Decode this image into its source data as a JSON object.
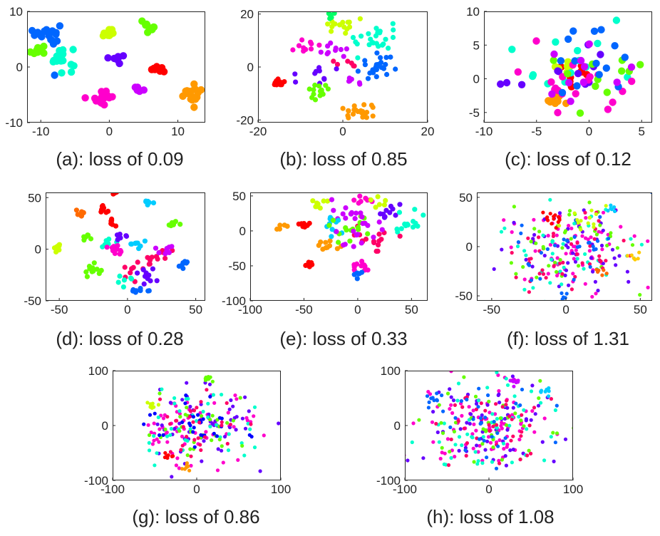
{
  "figure": {
    "palette": [
      "#ff0000",
      "#ff6a00",
      "#ff9900",
      "#ffcc00",
      "#ccff00",
      "#66ff00",
      "#00ff66",
      "#00ffcc",
      "#00ccff",
      "#0066ff",
      "#0000ff",
      "#6600ff",
      "#cc00ff",
      "#ff00cc",
      "#ff0066"
    ]
  },
  "chart_data": [
    {
      "id": "a",
      "type": "scatter",
      "caption": "(a): loss of 0.09",
      "xlim": [
        -12,
        14
      ],
      "ylim": [
        -10,
        10
      ],
      "xticks": [
        -10,
        0,
        10
      ],
      "yticks": [
        -10,
        0,
        10
      ],
      "clusters": [
        {
          "x": -9,
          "y": 6,
          "color": "#0066ff",
          "n": 18,
          "spread": 0.9
        },
        {
          "x": -10.5,
          "y": 3,
          "color": "#66ff00",
          "n": 8,
          "spread": 0.6
        },
        {
          "x": -7,
          "y": 1.8,
          "color": "#00ffcc",
          "n": 20,
          "spread": 1.0
        },
        {
          "x": -8,
          "y": -1.5,
          "color": "#0066ff",
          "n": 1,
          "spread": 0.1
        },
        {
          "x": 0,
          "y": 6,
          "color": "#ccff00",
          "n": 10,
          "spread": 0.5
        },
        {
          "x": 5.5,
          "y": 7.5,
          "color": "#66ff00",
          "n": 10,
          "spread": 0.6
        },
        {
          "x": 1.2,
          "y": 1.5,
          "color": "#6600ff",
          "n": 8,
          "spread": 0.4
        },
        {
          "x": 7,
          "y": -0.2,
          "color": "#ff0000",
          "n": 8,
          "spread": 0.4
        },
        {
          "x": 4,
          "y": -3.8,
          "color": "#cc00ff",
          "n": 6,
          "spread": 0.4
        },
        {
          "x": -1,
          "y": -5.5,
          "color": "#ff00cc",
          "n": 16,
          "spread": 0.7
        },
        {
          "x": -3.5,
          "y": -5.5,
          "color": "#ff00cc",
          "n": 1,
          "spread": 0.1
        },
        {
          "x": 12,
          "y": -4.8,
          "color": "#ff9900",
          "n": 18,
          "spread": 0.8
        }
      ]
    },
    {
      "id": "b",
      "type": "scatter",
      "caption": "(b): loss of 0.85",
      "xlim": [
        -20,
        20
      ],
      "ylim": [
        -21,
        21
      ],
      "xticks": [
        -20,
        0,
        20
      ],
      "yticks": [
        -20,
        0,
        20
      ],
      "clusters": [
        {
          "x": -1,
          "y": 16,
          "color": "#ccff00",
          "n": 14,
          "spread": 2.0
        },
        {
          "x": -2.5,
          "y": 19,
          "color": "#00ff66",
          "n": 5,
          "spread": 0.8
        },
        {
          "x": 8,
          "y": 11,
          "color": "#00ffcc",
          "n": 24,
          "spread": 2.5
        },
        {
          "x": -8,
          "y": 8,
          "color": "#ff00cc",
          "n": 10,
          "spread": 1.5
        },
        {
          "x": -3,
          "y": 6,
          "color": "#cc00ff",
          "n": 10,
          "spread": 2.0
        },
        {
          "x": 1,
          "y": 2,
          "color": "#ff0066",
          "n": 6,
          "spread": 1.5
        },
        {
          "x": 8,
          "y": 0,
          "color": "#0066ff",
          "n": 24,
          "spread": 2.5
        },
        {
          "x": -6,
          "y": -2,
          "color": "#6600ff",
          "n": 10,
          "spread": 1.6
        },
        {
          "x": -15,
          "y": -6,
          "color": "#ff0000",
          "n": 14,
          "spread": 1.0
        },
        {
          "x": -6,
          "y": -9,
          "color": "#66ff00",
          "n": 14,
          "spread": 1.6
        },
        {
          "x": 3,
          "y": -6,
          "color": "#cc00ff",
          "n": 6,
          "spread": 1.2
        },
        {
          "x": 4,
          "y": -17,
          "color": "#ff9900",
          "n": 22,
          "spread": 1.8
        }
      ]
    },
    {
      "id": "c",
      "type": "scatter",
      "caption": "(c): loss of 0.12",
      "xlim": [
        -10,
        6
      ],
      "ylim": [
        -6.5,
        10
      ],
      "xticks": [
        -10,
        -5,
        0,
        5
      ],
      "yticks": [
        -5,
        0,
        5,
        10
      ],
      "clusters": [
        {
          "x": -3,
          "y": -3,
          "color": "#ff9900",
          "n": 14,
          "spread": 0.7
        },
        {
          "x": -1,
          "y": 1,
          "color": "#ff0000",
          "n": 8,
          "spread": 1.2
        },
        {
          "x": -2,
          "y": 2,
          "color": "#ccff00",
          "n": 6,
          "spread": 0.8
        },
        {
          "x": 0,
          "y": 2,
          "color": "#6600ff",
          "n": 8,
          "spread": 1.5
        },
        {
          "x": -3,
          "y": 1,
          "color": "#00ffcc",
          "n": 14,
          "spread": 3.0
        },
        {
          "x": -1,
          "y": 0,
          "color": "#ff00cc",
          "n": 20,
          "spread": 3.2
        },
        {
          "x": 0,
          "y": 0,
          "color": "#66ff00",
          "n": 12,
          "spread": 3.0
        },
        {
          "x": 0,
          "y": 1,
          "color": "#0066ff",
          "n": 14,
          "spread": 3.5
        },
        {
          "x": 0,
          "y": 0,
          "color": "#cc00ff",
          "n": 10,
          "spread": 3.0
        },
        {
          "x": -7.5,
          "y": -0.5,
          "color": "#6600ff",
          "n": 3,
          "spread": 0.5
        }
      ]
    },
    {
      "id": "d",
      "type": "scatter",
      "caption": "(d): loss of 0.28",
      "xlim": [
        -60,
        57
      ],
      "ylim": [
        -50,
        55
      ],
      "xticks": [
        -50,
        0,
        50
      ],
      "yticks": [
        -50,
        0,
        50
      ],
      "clusters": [
        {
          "x": -52,
          "y": 1,
          "color": "#ccff00",
          "n": 10,
          "spread": 2
        },
        {
          "x": -34,
          "y": 35,
          "color": "#ff6a00",
          "n": 8,
          "spread": 2
        },
        {
          "x": -18,
          "y": 39,
          "color": "#ff0000",
          "n": 8,
          "spread": 2
        },
        {
          "x": -10,
          "y": 54,
          "color": "#ff0000",
          "n": 4,
          "spread": 1
        },
        {
          "x": 14,
          "y": 45,
          "color": "#00ccff",
          "n": 6,
          "spread": 2
        },
        {
          "x": 33,
          "y": 24,
          "color": "#66ff00",
          "n": 8,
          "spread": 2
        },
        {
          "x": -11,
          "y": 25,
          "color": "#ff0000",
          "n": 6,
          "spread": 2
        },
        {
          "x": -30,
          "y": 10,
          "color": "#66ff00",
          "n": 6,
          "spread": 3
        },
        {
          "x": -15,
          "y": 5,
          "color": "#00ffcc",
          "n": 6,
          "spread": 3
        },
        {
          "x": -5,
          "y": 10,
          "color": "#6600ff",
          "n": 6,
          "spread": 3
        },
        {
          "x": -8,
          "y": -1,
          "color": "#ff00cc",
          "n": 10,
          "spread": 3
        },
        {
          "x": 8,
          "y": 5,
          "color": "#00ccff",
          "n": 8,
          "spread": 3
        },
        {
          "x": 20,
          "y": -5,
          "color": "#ff0066",
          "n": 14,
          "spread": 5
        },
        {
          "x": 28,
          "y": 0,
          "color": "#cc00ff",
          "n": 8,
          "spread": 4
        },
        {
          "x": -25,
          "y": -20,
          "color": "#66ff00",
          "n": 12,
          "spread": 4
        },
        {
          "x": 5,
          "y": -18,
          "color": "#ff0066",
          "n": 8,
          "spread": 4
        },
        {
          "x": 15,
          "y": -28,
          "color": "#6600ff",
          "n": 10,
          "spread": 4
        },
        {
          "x": 10,
          "y": -40,
          "color": "#0066ff",
          "n": 8,
          "spread": 3
        },
        {
          "x": 42,
          "y": -15,
          "color": "#0066ff",
          "n": 8,
          "spread": 3
        },
        {
          "x": -5,
          "y": -30,
          "color": "#00ffcc",
          "n": 6,
          "spread": 3
        }
      ]
    },
    {
      "id": "e",
      "type": "scatter",
      "caption": "(e): loss of 0.33",
      "xlim": [
        -100,
        65
      ],
      "ylim": [
        -100,
        55
      ],
      "xticks": [
        -100,
        -50,
        0,
        50
      ],
      "yticks": [
        -100,
        -50,
        0,
        50
      ],
      "clusters": [
        {
          "x": -70,
          "y": 5,
          "color": "#ff9900",
          "n": 5,
          "spread": 3
        },
        {
          "x": -35,
          "y": 40,
          "color": "#ccff00",
          "n": 8,
          "spread": 4
        },
        {
          "x": -48,
          "y": 10,
          "color": "#ff0000",
          "n": 8,
          "spread": 3
        },
        {
          "x": -10,
          "y": 25,
          "color": "#cc00ff",
          "n": 12,
          "spread": 8
        },
        {
          "x": 5,
          "y": 45,
          "color": "#ff00cc",
          "n": 8,
          "spread": 4
        },
        {
          "x": 30,
          "y": 25,
          "color": "#6600ff",
          "n": 10,
          "spread": 8
        },
        {
          "x": 45,
          "y": 10,
          "color": "#00ffcc",
          "n": 14,
          "spread": 8
        },
        {
          "x": 15,
          "y": -10,
          "color": "#ff0066",
          "n": 16,
          "spread": 10
        },
        {
          "x": -30,
          "y": -20,
          "color": "#ff9900",
          "n": 10,
          "spread": 5
        },
        {
          "x": -45,
          "y": -48,
          "color": "#ff0000",
          "n": 6,
          "spread": 2
        },
        {
          "x": 0,
          "y": -50,
          "color": "#ff00cc",
          "n": 10,
          "spread": 5
        },
        {
          "x": -2,
          "y": -62,
          "color": "#0066ff",
          "n": 6,
          "spread": 3
        },
        {
          "x": -20,
          "y": 10,
          "color": "#00ccff",
          "n": 10,
          "spread": 10
        },
        {
          "x": 0,
          "y": 0,
          "color": "#66ff00",
          "n": 16,
          "spread": 18
        },
        {
          "x": 0,
          "y": 0,
          "color": "#cc00ff",
          "n": 16,
          "spread": 18
        },
        {
          "x": 20,
          "y": 40,
          "color": "#ccff00",
          "n": 6,
          "spread": 5
        }
      ]
    },
    {
      "id": "f",
      "type": "scatter",
      "caption": "(f): loss of 1.31",
      "xlim": [
        -60,
        58
      ],
      "ylim": [
        -55,
        55
      ],
      "xticks": [
        -50,
        0,
        50
      ],
      "yticks": [
        -50,
        0,
        50
      ],
      "clusters": [
        {
          "x": 0,
          "y": 0,
          "color": "#ff00cc",
          "n": 70,
          "spread": 22
        },
        {
          "x": 0,
          "y": 0,
          "color": "#6600ff",
          "n": 50,
          "spread": 22
        },
        {
          "x": 0,
          "y": 0,
          "color": "#66ff00",
          "n": 40,
          "spread": 22
        },
        {
          "x": 0,
          "y": 0,
          "color": "#00ffcc",
          "n": 40,
          "spread": 22
        },
        {
          "x": 0,
          "y": 0,
          "color": "#ff0066",
          "n": 40,
          "spread": 22
        },
        {
          "x": 0,
          "y": 0,
          "color": "#0066ff",
          "n": 30,
          "spread": 22
        },
        {
          "x": -10,
          "y": 30,
          "color": "#ff0000",
          "n": 14,
          "spread": 4
        },
        {
          "x": 10,
          "y": 25,
          "color": "#ccff00",
          "n": 14,
          "spread": 6
        },
        {
          "x": 25,
          "y": -25,
          "color": "#ff6a00",
          "n": 6,
          "spread": 2
        },
        {
          "x": 45,
          "y": -10,
          "color": "#ffcc00",
          "n": 6,
          "spread": 3
        },
        {
          "x": 0,
          "y": -50,
          "color": "#0066ff",
          "n": 5,
          "spread": 2
        },
        {
          "x": 30,
          "y": 40,
          "color": "#00ccff",
          "n": 6,
          "spread": 3
        }
      ]
    },
    {
      "id": "g",
      "type": "scatter",
      "caption": "(g): loss of 0.86",
      "xlim": [
        -100,
        100
      ],
      "ylim": [
        -100,
        100
      ],
      "xticks": [
        -100,
        0,
        100
      ],
      "yticks": [
        -100,
        0,
        100
      ],
      "clusters": [
        {
          "x": 0,
          "y": 0,
          "color": "#ff00cc",
          "n": 70,
          "spread": 35
        },
        {
          "x": 0,
          "y": 0,
          "color": "#6600ff",
          "n": 50,
          "spread": 30
        },
        {
          "x": 0,
          "y": 0,
          "color": "#00ffcc",
          "n": 40,
          "spread": 35
        },
        {
          "x": 0,
          "y": 0,
          "color": "#66ff00",
          "n": 30,
          "spread": 30
        },
        {
          "x": 0,
          "y": 0,
          "color": "#0000ff",
          "n": 30,
          "spread": 25
        },
        {
          "x": 0,
          "y": 0,
          "color": "#ff0066",
          "n": 30,
          "spread": 30
        },
        {
          "x": 15,
          "y": 85,
          "color": "#66ff00",
          "n": 8,
          "spread": 4
        },
        {
          "x": -10,
          "y": -75,
          "color": "#ff9900",
          "n": 8,
          "spread": 4
        },
        {
          "x": -35,
          "y": -55,
          "color": "#ff0000",
          "n": 8,
          "spread": 4
        },
        {
          "x": -55,
          "y": 35,
          "color": "#ccff00",
          "n": 8,
          "spread": 4
        }
      ]
    },
    {
      "id": "h",
      "type": "scatter",
      "caption": "(h): loss of 1.08",
      "xlim": [
        -100,
        100
      ],
      "ylim": [
        -100,
        100
      ],
      "xticks": [
        -100,
        0,
        100
      ],
      "yticks": [
        -100,
        0,
        100
      ],
      "clusters": [
        {
          "x": 0,
          "y": 0,
          "color": "#ff00cc",
          "n": 90,
          "spread": 40
        },
        {
          "x": 0,
          "y": 0,
          "color": "#6600ff",
          "n": 60,
          "spread": 40
        },
        {
          "x": 0,
          "y": 0,
          "color": "#00ffcc",
          "n": 50,
          "spread": 40
        },
        {
          "x": 0,
          "y": 0,
          "color": "#66ff00",
          "n": 40,
          "spread": 40
        },
        {
          "x": 0,
          "y": 0,
          "color": "#ff0066",
          "n": 40,
          "spread": 40
        },
        {
          "x": 0,
          "y": 0,
          "color": "#0066ff",
          "n": 30,
          "spread": 40
        },
        {
          "x": 65,
          "y": 60,
          "color": "#00ccff",
          "n": 8,
          "spread": 4
        },
        {
          "x": 30,
          "y": 80,
          "color": "#cc00ff",
          "n": 8,
          "spread": 4
        },
        {
          "x": -65,
          "y": 50,
          "color": "#0066ff",
          "n": 8,
          "spread": 4
        }
      ]
    }
  ]
}
